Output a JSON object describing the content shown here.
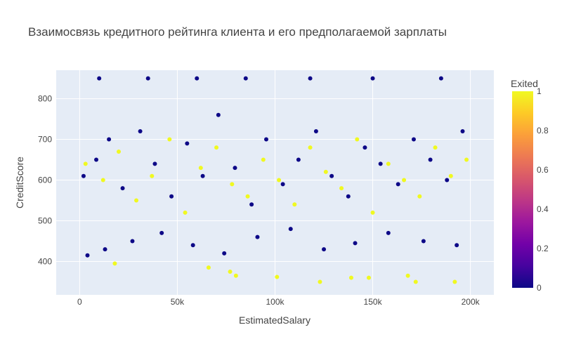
{
  "chart_data": {
    "type": "scatter",
    "title": "Взаимосвязь кредитного рейтинга клиента и его предполагаемой зарплаты",
    "xlabel": "EstimatedSalary",
    "ylabel": "CreditScore",
    "xlim": [
      -12000,
      212000
    ],
    "ylim": [
      318,
      870
    ],
    "x_ticks": [
      0,
      50000,
      100000,
      150000,
      200000
    ],
    "x_tick_labels": [
      "0",
      "50k",
      "100k",
      "150k",
      "200k"
    ],
    "y_ticks": [
      400,
      500,
      600,
      700,
      800
    ],
    "y_tick_labels": [
      "400",
      "500",
      "600",
      "700",
      "800"
    ],
    "grid": true,
    "plot_background": "#e5ecf6",
    "colorbar": {
      "title": "Exited",
      "min": 0,
      "max": 1,
      "ticks": [
        0,
        0.2,
        0.4,
        0.6,
        0.8,
        1
      ],
      "tick_labels": [
        "0",
        "0.2",
        "0.4",
        "0.6",
        "0.8",
        "1"
      ],
      "colorscale": [
        "#0d0887",
        "#46039f",
        "#7201a8",
        "#9c179e",
        "#bd3786",
        "#d8576b",
        "#ed7953",
        "#fb9f3a",
        "#fdca26",
        "#f0f921"
      ]
    },
    "series": [
      {
        "color_value": 0,
        "color": "#0d0887",
        "x": [
          2000,
          8500,
          15000,
          22000,
          31000,
          38500,
          47000,
          55000,
          63000,
          71000,
          79500,
          88000,
          95500,
          104000,
          112000,
          121000,
          129000,
          137500,
          146000,
          154000,
          163000,
          171000,
          179500,
          188000,
          196000,
          4000,
          13000,
          27000,
          42000,
          58000,
          74000,
          91000,
          108000,
          125000,
          141000,
          158000,
          176000,
          193000,
          10000,
          35000,
          60000,
          85000,
          118000,
          150000,
          185000
        ],
        "y": [
          610,
          650,
          700,
          580,
          720,
          640,
          560,
          690,
          610,
          760,
          630,
          540,
          700,
          590,
          650,
          720,
          610,
          560,
          680,
          640,
          590,
          700,
          650,
          600,
          720,
          415,
          430,
          450,
          470,
          440,
          420,
          460,
          480,
          430,
          445,
          470,
          450,
          440,
          850,
          850,
          850,
          850,
          850,
          850,
          850
        ]
      },
      {
        "color_value": 1,
        "color": "#f0f921",
        "x": [
          3000,
          12000,
          20000,
          29000,
          37000,
          46000,
          54000,
          62000,
          70000,
          78000,
          86000,
          94000,
          102000,
          110000,
          118000,
          126000,
          134000,
          142000,
          150000,
          158000,
          166000,
          174000,
          182000,
          190000,
          198000,
          18000,
          66000,
          77000,
          80000,
          101000,
          123000,
          139000,
          148000,
          168000,
          172000,
          192000
        ],
        "y": [
          640,
          600,
          670,
          550,
          610,
          700,
          520,
          630,
          680,
          590,
          560,
          650,
          600,
          540,
          680,
          620,
          580,
          700,
          520,
          640,
          600,
          560,
          680,
          610,
          650,
          395,
          385,
          375,
          365,
          362,
          350,
          360,
          360,
          365,
          350,
          350
        ]
      }
    ]
  }
}
